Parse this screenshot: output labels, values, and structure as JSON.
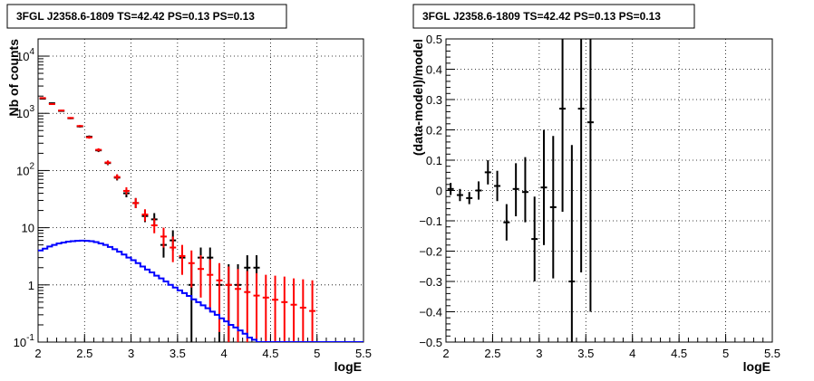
{
  "chart_data": [
    {
      "type": "line",
      "title": "3FGL J2358.6-1809 TS=42.42 PS=0.13 PS=0.13",
      "xlabel": "logE",
      "ylabel": "Nb of counts",
      "xlim": [
        2,
        5.5
      ],
      "ylim": [
        0.1,
        20000
      ],
      "yscale": "log",
      "grid": true,
      "x_ticks": [
        "2",
        "2.5",
        "3",
        "3.5",
        "4",
        "4.5",
        "5",
        "5.5"
      ],
      "y_ticks": [
        {
          "value": 0.1,
          "base": "10",
          "exp": "-1"
        },
        {
          "value": 1,
          "base": "1",
          "exp": ""
        },
        {
          "value": 10,
          "base": "10",
          "exp": ""
        },
        {
          "value": 100,
          "base": "10",
          "exp": "2"
        },
        {
          "value": 1000,
          "base": "10",
          "exp": "3"
        },
        {
          "value": 10000,
          "base": "10",
          "exp": "4"
        }
      ],
      "series": [
        {
          "color": "#000000",
          "kind": "errorbar",
          "points": [
            {
              "x": 2.05,
              "y": 1800,
              "lo": 1760,
              "hi": 1840
            },
            {
              "x": 2.15,
              "y": 1500,
              "lo": 1460,
              "hi": 1540
            },
            {
              "x": 2.25,
              "y": 1100,
              "lo": 1070,
              "hi": 1130
            },
            {
              "x": 2.35,
              "y": 820,
              "lo": 790,
              "hi": 850
            },
            {
              "x": 2.45,
              "y": 590,
              "lo": 565,
              "hi": 615
            },
            {
              "x": 2.55,
              "y": 390,
              "lo": 370,
              "hi": 410
            },
            {
              "x": 2.65,
              "y": 225,
              "lo": 210,
              "hi": 240
            },
            {
              "x": 2.75,
              "y": 135,
              "lo": 124,
              "hi": 146
            },
            {
              "x": 2.85,
              "y": 75,
              "lo": 67,
              "hi": 84
            },
            {
              "x": 2.95,
              "y": 40,
              "lo": 34,
              "hi": 47
            },
            {
              "x": 3.05,
              "y": 27,
              "lo": 22,
              "hi": 33
            },
            {
              "x": 3.15,
              "y": 16,
              "lo": 12.5,
              "hi": 20
            },
            {
              "x": 3.25,
              "y": 14,
              "lo": 11,
              "hi": 18
            },
            {
              "x": 3.35,
              "y": 5,
              "lo": 3,
              "hi": 8
            },
            {
              "x": 3.45,
              "y": 6,
              "lo": 4,
              "hi": 9
            },
            {
              "x": 3.55,
              "y": 3,
              "lo": 1.6,
              "hi": 4.5
            },
            {
              "x": 3.65,
              "y": 1,
              "lo": 0.1,
              "hi": 2.3
            },
            {
              "x": 3.75,
              "y": 3,
              "lo": 1.6,
              "hi": 4.5
            },
            {
              "x": 3.85,
              "y": 3,
              "lo": 1.6,
              "hi": 4.5
            },
            {
              "x": 3.95,
              "y": 1,
              "lo": 0.1,
              "hi": 2.3
            },
            {
              "x": 4.05,
              "y": 1,
              "lo": 0.1,
              "hi": 2.3
            },
            {
              "x": 4.15,
              "y": 1,
              "lo": 0.1,
              "hi": 2.3
            },
            {
              "x": 4.25,
              "y": 2,
              "lo": 0.7,
              "hi": 3.3
            },
            {
              "x": 4.35,
              "y": 2,
              "lo": 0.7,
              "hi": 3.3
            }
          ]
        },
        {
          "color": "#ff0000",
          "kind": "errorbar",
          "points": [
            {
              "x": 2.05,
              "y": 1850,
              "lo": 1810,
              "hi": 1890
            },
            {
              "x": 2.15,
              "y": 1450,
              "lo": 1410,
              "hi": 1490
            },
            {
              "x": 2.25,
              "y": 1120,
              "lo": 1090,
              "hi": 1150
            },
            {
              "x": 2.35,
              "y": 830,
              "lo": 800,
              "hi": 860
            },
            {
              "x": 2.45,
              "y": 600,
              "lo": 575,
              "hi": 625
            },
            {
              "x": 2.55,
              "y": 380,
              "lo": 360,
              "hi": 400
            },
            {
              "x": 2.65,
              "y": 230,
              "lo": 215,
              "hi": 245
            },
            {
              "x": 2.75,
              "y": 138,
              "lo": 126,
              "hi": 150
            },
            {
              "x": 2.85,
              "y": 77,
              "lo": 69,
              "hi": 86
            },
            {
              "x": 2.95,
              "y": 44,
              "lo": 38,
              "hi": 51
            },
            {
              "x": 3.05,
              "y": 27,
              "lo": 22,
              "hi": 33
            },
            {
              "x": 3.15,
              "y": 17,
              "lo": 13,
              "hi": 21
            },
            {
              "x": 3.25,
              "y": 11,
              "lo": 8,
              "hi": 14.5
            },
            {
              "x": 3.35,
              "y": 7,
              "lo": 4.5,
              "hi": 10
            },
            {
              "x": 3.45,
              "y": 4.5,
              "lo": 2.5,
              "hi": 7
            },
            {
              "x": 3.55,
              "y": 3.2,
              "lo": 1.5,
              "hi": 5
            },
            {
              "x": 3.65,
              "y": 2.4,
              "lo": 0.9,
              "hi": 4
            },
            {
              "x": 3.75,
              "y": 1.9,
              "lo": 0.6,
              "hi": 3.3
            },
            {
              "x": 3.85,
              "y": 1.5,
              "lo": 0.35,
              "hi": 2.8
            },
            {
              "x": 3.95,
              "y": 1.2,
              "lo": 0.15,
              "hi": 2.4
            },
            {
              "x": 4.05,
              "y": 1.0,
              "lo": 0.1,
              "hi": 2.1
            },
            {
              "x": 4.15,
              "y": 0.85,
              "lo": 0.1,
              "hi": 1.9
            },
            {
              "x": 4.25,
              "y": 0.75,
              "lo": 0.1,
              "hi": 1.75
            },
            {
              "x": 4.35,
              "y": 0.65,
              "lo": 0.1,
              "hi": 1.6
            },
            {
              "x": 4.45,
              "y": 0.6,
              "lo": 0.1,
              "hi": 1.5
            },
            {
              "x": 4.55,
              "y": 0.55,
              "lo": 0.1,
              "hi": 1.45
            },
            {
              "x": 4.65,
              "y": 0.5,
              "lo": 0.1,
              "hi": 1.4
            },
            {
              "x": 4.75,
              "y": 0.45,
              "lo": 0.1,
              "hi": 1.3
            },
            {
              "x": 4.85,
              "y": 0.4,
              "lo": 0.1,
              "hi": 1.25
            },
            {
              "x": 4.95,
              "y": 0.35,
              "lo": 0.1,
              "hi": 1.2
            }
          ]
        },
        {
          "color": "#0000ff",
          "kind": "step",
          "bin_width": 0.05,
          "x_start": 2.0,
          "values": [
            4.0,
            4.3,
            4.7,
            5.0,
            5.3,
            5.5,
            5.7,
            5.8,
            5.9,
            5.95,
            5.9,
            5.8,
            5.6,
            5.3,
            5.0,
            4.6,
            4.2,
            3.8,
            3.4,
            3.0,
            2.7,
            2.4,
            2.1,
            1.85,
            1.65,
            1.45,
            1.3,
            1.15,
            1.0,
            0.9,
            0.8,
            0.72,
            0.64,
            0.56,
            0.5,
            0.44,
            0.39,
            0.34,
            0.3,
            0.26,
            0.23,
            0.2,
            0.18,
            0.16,
            0.14,
            0.12,
            0.11,
            0.1,
            0.1,
            0.1,
            0.1,
            0.1,
            0.1,
            0.1,
            0.1,
            0.1,
            0.1,
            0.1,
            0.1,
            0.1,
            0.1,
            0.1,
            0.1,
            0.1,
            0.1,
            0.1,
            0.1,
            0.1,
            0.1,
            0.1
          ]
        }
      ]
    },
    {
      "type": "scatter",
      "title": "3FGL J2358.6-1809 TS=42.42 PS=0.13 PS=0.13",
      "xlabel": "logE",
      "ylabel": "(data-model)/model",
      "xlim": [
        2,
        5.5
      ],
      "ylim": [
        -0.5,
        0.5
      ],
      "grid": true,
      "x_ticks": [
        "2",
        "2.5",
        "3",
        "3.5",
        "4",
        "4.5",
        "5",
        "5.5"
      ],
      "y_ticks": [
        "−0.5",
        "−0.4",
        "−0.3",
        "−0.2",
        "−0.1",
        "0",
        "0.1",
        "0.2",
        "0.3",
        "0.4",
        "0.5"
      ],
      "y_tick_values": [
        -0.5,
        -0.4,
        -0.3,
        -0.2,
        -0.1,
        0,
        0.1,
        0.2,
        0.3,
        0.4,
        0.5
      ],
      "series": [
        {
          "color": "#000000",
          "kind": "errorbar",
          "points": [
            {
              "x": 2.05,
              "y": 0.005,
              "lo": -0.015,
              "hi": 0.025
            },
            {
              "x": 2.15,
              "y": -0.015,
              "lo": -0.035,
              "hi": 0.005
            },
            {
              "x": 2.25,
              "y": -0.025,
              "lo": -0.045,
              "hi": -0.005
            },
            {
              "x": 2.35,
              "y": 0.0,
              "lo": -0.03,
              "hi": 0.03
            },
            {
              "x": 2.45,
              "y": 0.06,
              "lo": 0.02,
              "hi": 0.1
            },
            {
              "x": 2.55,
              "y": 0.015,
              "lo": -0.035,
              "hi": 0.065
            },
            {
              "x": 2.65,
              "y": -0.105,
              "lo": -0.165,
              "hi": -0.045
            },
            {
              "x": 2.75,
              "y": 0.005,
              "lo": -0.085,
              "hi": 0.09
            },
            {
              "x": 2.85,
              "y": -0.005,
              "lo": -0.105,
              "hi": 0.11
            },
            {
              "x": 2.95,
              "y": -0.16,
              "lo": -0.3,
              "hi": -0.02
            },
            {
              "x": 3.05,
              "y": 0.01,
              "lo": -0.18,
              "hi": 0.2
            },
            {
              "x": 3.15,
              "y": -0.055,
              "lo": -0.29,
              "hi": 0.18
            },
            {
              "x": 3.25,
              "y": 0.27,
              "lo": -0.07,
              "hi": 0.61
            },
            {
              "x": 3.35,
              "y": -0.3,
              "lo": -0.5,
              "hi": 0.15
            },
            {
              "x": 3.45,
              "y": 0.27,
              "lo": -0.27,
              "hi": 0.81
            },
            {
              "x": 3.55,
              "y": 0.225,
              "lo": -0.4,
              "hi": 0.85
            }
          ]
        }
      ]
    }
  ]
}
